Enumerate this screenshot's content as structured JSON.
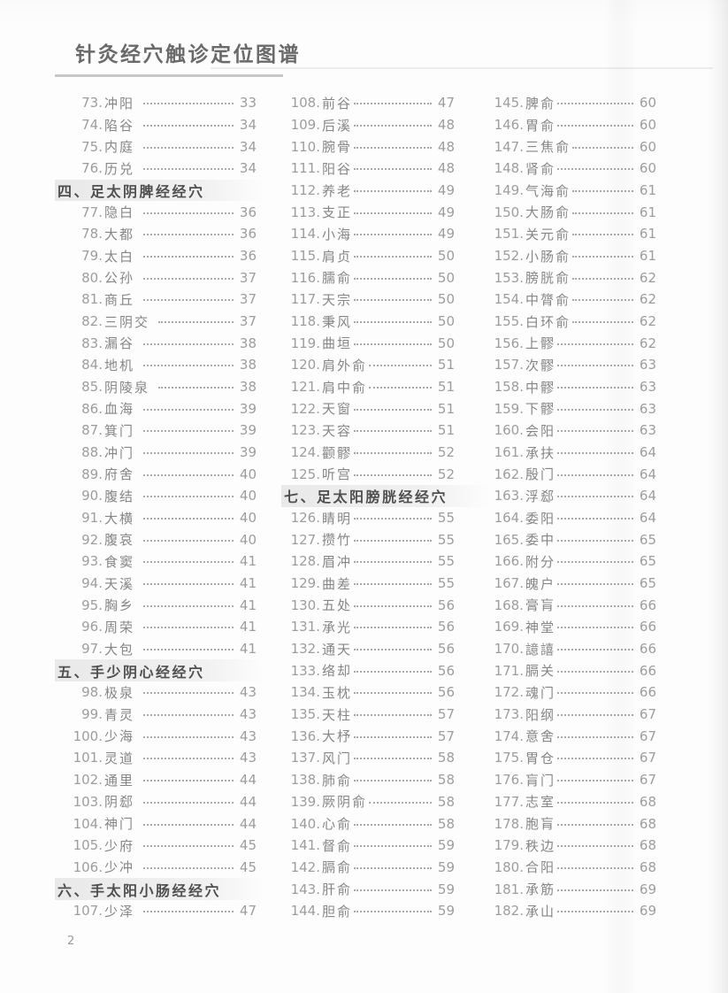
{
  "header": {
    "title": "针灸经穴触诊定位图谱"
  },
  "footer": {
    "page_number": "2"
  },
  "colors": {
    "entry_text": "#868686",
    "entry_number": "#9d9d9d",
    "section_text": "#4f4f4f",
    "section_background": "#e9e9e9",
    "header_rule": "#c7c7c7",
    "page_background": "#fdfdfd"
  },
  "columns": [
    {
      "rows": [
        {
          "type": "entry",
          "num": "73",
          "name": "冲阳",
          "page": "33"
        },
        {
          "type": "entry",
          "num": "74",
          "name": "陷谷",
          "page": "34"
        },
        {
          "type": "entry",
          "num": "75",
          "name": "内庭",
          "page": "34"
        },
        {
          "type": "entry",
          "num": "76",
          "name": "历兑",
          "page": "34"
        },
        {
          "type": "section",
          "label": "四、足太阴脾经经穴"
        },
        {
          "type": "entry",
          "num": "77",
          "name": "隐白",
          "page": "36"
        },
        {
          "type": "entry",
          "num": "78",
          "name": "大都",
          "page": "36"
        },
        {
          "type": "entry",
          "num": "79",
          "name": "太白",
          "page": "36"
        },
        {
          "type": "entry",
          "num": "80",
          "name": "公孙",
          "page": "37"
        },
        {
          "type": "entry",
          "num": "81",
          "name": "商丘",
          "page": "37"
        },
        {
          "type": "entry",
          "num": "82",
          "name": "三阴交",
          "page": "37"
        },
        {
          "type": "entry",
          "num": "83",
          "name": "漏谷",
          "page": "38"
        },
        {
          "type": "entry",
          "num": "84",
          "name": "地机",
          "page": "38"
        },
        {
          "type": "entry",
          "num": "85",
          "name": "阴陵泉",
          "page": "38"
        },
        {
          "type": "entry",
          "num": "86",
          "name": "血海",
          "page": "39"
        },
        {
          "type": "entry",
          "num": "87",
          "name": "箕门",
          "page": "39"
        },
        {
          "type": "entry",
          "num": "88",
          "name": "冲门",
          "page": "39"
        },
        {
          "type": "entry",
          "num": "89",
          "name": "府舍",
          "page": "40"
        },
        {
          "type": "entry",
          "num": "90",
          "name": "腹结",
          "page": "40"
        },
        {
          "type": "entry",
          "num": "91",
          "name": "大横",
          "page": "40"
        },
        {
          "type": "entry",
          "num": "92",
          "name": "腹哀",
          "page": "40"
        },
        {
          "type": "entry",
          "num": "93",
          "name": "食窦",
          "page": "41"
        },
        {
          "type": "entry",
          "num": "94",
          "name": "天溪",
          "page": "41"
        },
        {
          "type": "entry",
          "num": "95",
          "name": "胸乡",
          "page": "41"
        },
        {
          "type": "entry",
          "num": "96",
          "name": "周荣",
          "page": "41"
        },
        {
          "type": "entry",
          "num": "97",
          "name": "大包",
          "page": "41"
        },
        {
          "type": "section",
          "label": "五、手少阴心经经穴"
        },
        {
          "type": "entry",
          "num": "98",
          "name": "极泉",
          "page": "43"
        },
        {
          "type": "entry",
          "num": "99",
          "name": "青灵",
          "page": "43"
        },
        {
          "type": "entry",
          "num": "100",
          "name": "少海",
          "page": "43"
        },
        {
          "type": "entry",
          "num": "101",
          "name": "灵道",
          "page": "43"
        },
        {
          "type": "entry",
          "num": "102",
          "name": "通里",
          "page": "44"
        },
        {
          "type": "entry",
          "num": "103",
          "name": "阴郄",
          "page": "44"
        },
        {
          "type": "entry",
          "num": "104",
          "name": "神门",
          "page": "44"
        },
        {
          "type": "entry",
          "num": "105",
          "name": "少府",
          "page": "45"
        },
        {
          "type": "entry",
          "num": "106",
          "name": "少冲",
          "page": "45"
        },
        {
          "type": "section",
          "label": "六、手太阳小肠经经穴"
        },
        {
          "type": "entry",
          "num": "107",
          "name": "少泽",
          "page": "47"
        }
      ]
    },
    {
      "rows": [
        {
          "type": "entry",
          "num": "108",
          "name": "前谷",
          "page": "47"
        },
        {
          "type": "entry",
          "num": "109",
          "name": "后溪",
          "page": "48"
        },
        {
          "type": "entry",
          "num": "110",
          "name": "腕骨",
          "page": "48"
        },
        {
          "type": "entry",
          "num": "111",
          "name": "阳谷",
          "page": "48"
        },
        {
          "type": "entry",
          "num": "112",
          "name": "养老",
          "page": "49"
        },
        {
          "type": "entry",
          "num": "113",
          "name": "支正",
          "page": "49"
        },
        {
          "type": "entry",
          "num": "114",
          "name": "小海",
          "page": "49"
        },
        {
          "type": "entry",
          "num": "115",
          "name": "肩贞",
          "page": "50"
        },
        {
          "type": "entry",
          "num": "116",
          "name": "臑俞",
          "page": "50"
        },
        {
          "type": "entry",
          "num": "117",
          "name": "天宗",
          "page": "50"
        },
        {
          "type": "entry",
          "num": "118",
          "name": "秉风",
          "page": "50"
        },
        {
          "type": "entry",
          "num": "119",
          "name": "曲垣",
          "page": "50"
        },
        {
          "type": "entry",
          "num": "120",
          "name": "肩外俞",
          "page": "51"
        },
        {
          "type": "entry",
          "num": "121",
          "name": "肩中俞",
          "page": "51"
        },
        {
          "type": "entry",
          "num": "122",
          "name": "天窗",
          "page": "51"
        },
        {
          "type": "entry",
          "num": "123",
          "name": "天容",
          "page": "51"
        },
        {
          "type": "entry",
          "num": "124",
          "name": "颧髎",
          "page": "52"
        },
        {
          "type": "entry",
          "num": "125",
          "name": "听宫",
          "page": "52"
        },
        {
          "type": "section",
          "label": "七、足太阳膀胱经经穴"
        },
        {
          "type": "entry",
          "num": "126",
          "name": "睛明",
          "page": "55"
        },
        {
          "type": "entry",
          "num": "127",
          "name": "攒竹",
          "page": "55"
        },
        {
          "type": "entry",
          "num": "128",
          "name": "眉冲",
          "page": "55"
        },
        {
          "type": "entry",
          "num": "129",
          "name": "曲差",
          "page": "55"
        },
        {
          "type": "entry",
          "num": "130",
          "name": "五处",
          "page": "56"
        },
        {
          "type": "entry",
          "num": "131",
          "name": "承光",
          "page": "56"
        },
        {
          "type": "entry",
          "num": "132",
          "name": "通天",
          "page": "56"
        },
        {
          "type": "entry",
          "num": "133",
          "name": "络却",
          "page": "56"
        },
        {
          "type": "entry",
          "num": "134",
          "name": "玉枕",
          "page": "56"
        },
        {
          "type": "entry",
          "num": "135",
          "name": "天柱",
          "page": "57"
        },
        {
          "type": "entry",
          "num": "136",
          "name": "大杼",
          "page": "57"
        },
        {
          "type": "entry",
          "num": "137",
          "name": "风门",
          "page": "58"
        },
        {
          "type": "entry",
          "num": "138",
          "name": "肺俞",
          "page": "58"
        },
        {
          "type": "entry",
          "num": "139",
          "name": "厥阴俞",
          "page": "58"
        },
        {
          "type": "entry",
          "num": "140",
          "name": "心俞",
          "page": "58"
        },
        {
          "type": "entry",
          "num": "141",
          "name": "督俞",
          "page": "59"
        },
        {
          "type": "entry",
          "num": "142",
          "name": "膈俞",
          "page": "59"
        },
        {
          "type": "entry",
          "num": "143",
          "name": "肝俞",
          "page": "59"
        },
        {
          "type": "entry",
          "num": "144",
          "name": "胆俞",
          "page": "59"
        }
      ]
    },
    {
      "rows": [
        {
          "type": "entry",
          "num": "145",
          "name": "脾俞",
          "page": "60"
        },
        {
          "type": "entry",
          "num": "146",
          "name": "胃俞",
          "page": "60"
        },
        {
          "type": "entry",
          "num": "147",
          "name": "三焦俞",
          "page": "60"
        },
        {
          "type": "entry",
          "num": "148",
          "name": "肾俞",
          "page": "60"
        },
        {
          "type": "entry",
          "num": "149",
          "name": "气海俞",
          "page": "61"
        },
        {
          "type": "entry",
          "num": "150",
          "name": "大肠俞",
          "page": "61"
        },
        {
          "type": "entry",
          "num": "151",
          "name": "关元俞",
          "page": "61"
        },
        {
          "type": "entry",
          "num": "152",
          "name": "小肠俞",
          "page": "61"
        },
        {
          "type": "entry",
          "num": "153",
          "name": "膀胱俞",
          "page": "62"
        },
        {
          "type": "entry",
          "num": "154",
          "name": "中膂俞",
          "page": "62"
        },
        {
          "type": "entry",
          "num": "155",
          "name": "白环俞",
          "page": "62"
        },
        {
          "type": "entry",
          "num": "156",
          "name": "上髎",
          "page": "62"
        },
        {
          "type": "entry",
          "num": "157",
          "name": "次髎",
          "page": "63"
        },
        {
          "type": "entry",
          "num": "158",
          "name": "中髎",
          "page": "63"
        },
        {
          "type": "entry",
          "num": "159",
          "name": "下髎",
          "page": "63"
        },
        {
          "type": "entry",
          "num": "160",
          "name": "会阳",
          "page": "63"
        },
        {
          "type": "entry",
          "num": "161",
          "name": "承扶",
          "page": "64"
        },
        {
          "type": "entry",
          "num": "162",
          "name": "殷门",
          "page": "64"
        },
        {
          "type": "entry",
          "num": "163",
          "name": "浮郄",
          "page": "64"
        },
        {
          "type": "entry",
          "num": "164",
          "name": "委阳",
          "page": "64"
        },
        {
          "type": "entry",
          "num": "165",
          "name": "委中",
          "page": "65"
        },
        {
          "type": "entry",
          "num": "166",
          "name": "附分",
          "page": "65"
        },
        {
          "type": "entry",
          "num": "167",
          "name": "魄户",
          "page": "65"
        },
        {
          "type": "entry",
          "num": "168",
          "name": "膏肓",
          "page": "66"
        },
        {
          "type": "entry",
          "num": "169",
          "name": "神堂",
          "page": "66"
        },
        {
          "type": "entry",
          "num": "170",
          "name": "譩譆",
          "page": "66"
        },
        {
          "type": "entry",
          "num": "171",
          "name": "膈关",
          "page": "66"
        },
        {
          "type": "entry",
          "num": "172",
          "name": "魂门",
          "page": "66"
        },
        {
          "type": "entry",
          "num": "173",
          "name": "阳纲",
          "page": "67"
        },
        {
          "type": "entry",
          "num": "174",
          "name": "意舍",
          "page": "67"
        },
        {
          "type": "entry",
          "num": "175",
          "name": "胃仓",
          "page": "67"
        },
        {
          "type": "entry",
          "num": "176",
          "name": "肓门",
          "page": "67"
        },
        {
          "type": "entry",
          "num": "177",
          "name": "志室",
          "page": "68"
        },
        {
          "type": "entry",
          "num": "178",
          "name": "胞肓",
          "page": "68"
        },
        {
          "type": "entry",
          "num": "179",
          "name": "秩边",
          "page": "68"
        },
        {
          "type": "entry",
          "num": "180",
          "name": "合阳",
          "page": "68"
        },
        {
          "type": "entry",
          "num": "181",
          "name": "承筋",
          "page": "69"
        },
        {
          "type": "entry",
          "num": "182",
          "name": "承山",
          "page": "69"
        }
      ]
    }
  ]
}
